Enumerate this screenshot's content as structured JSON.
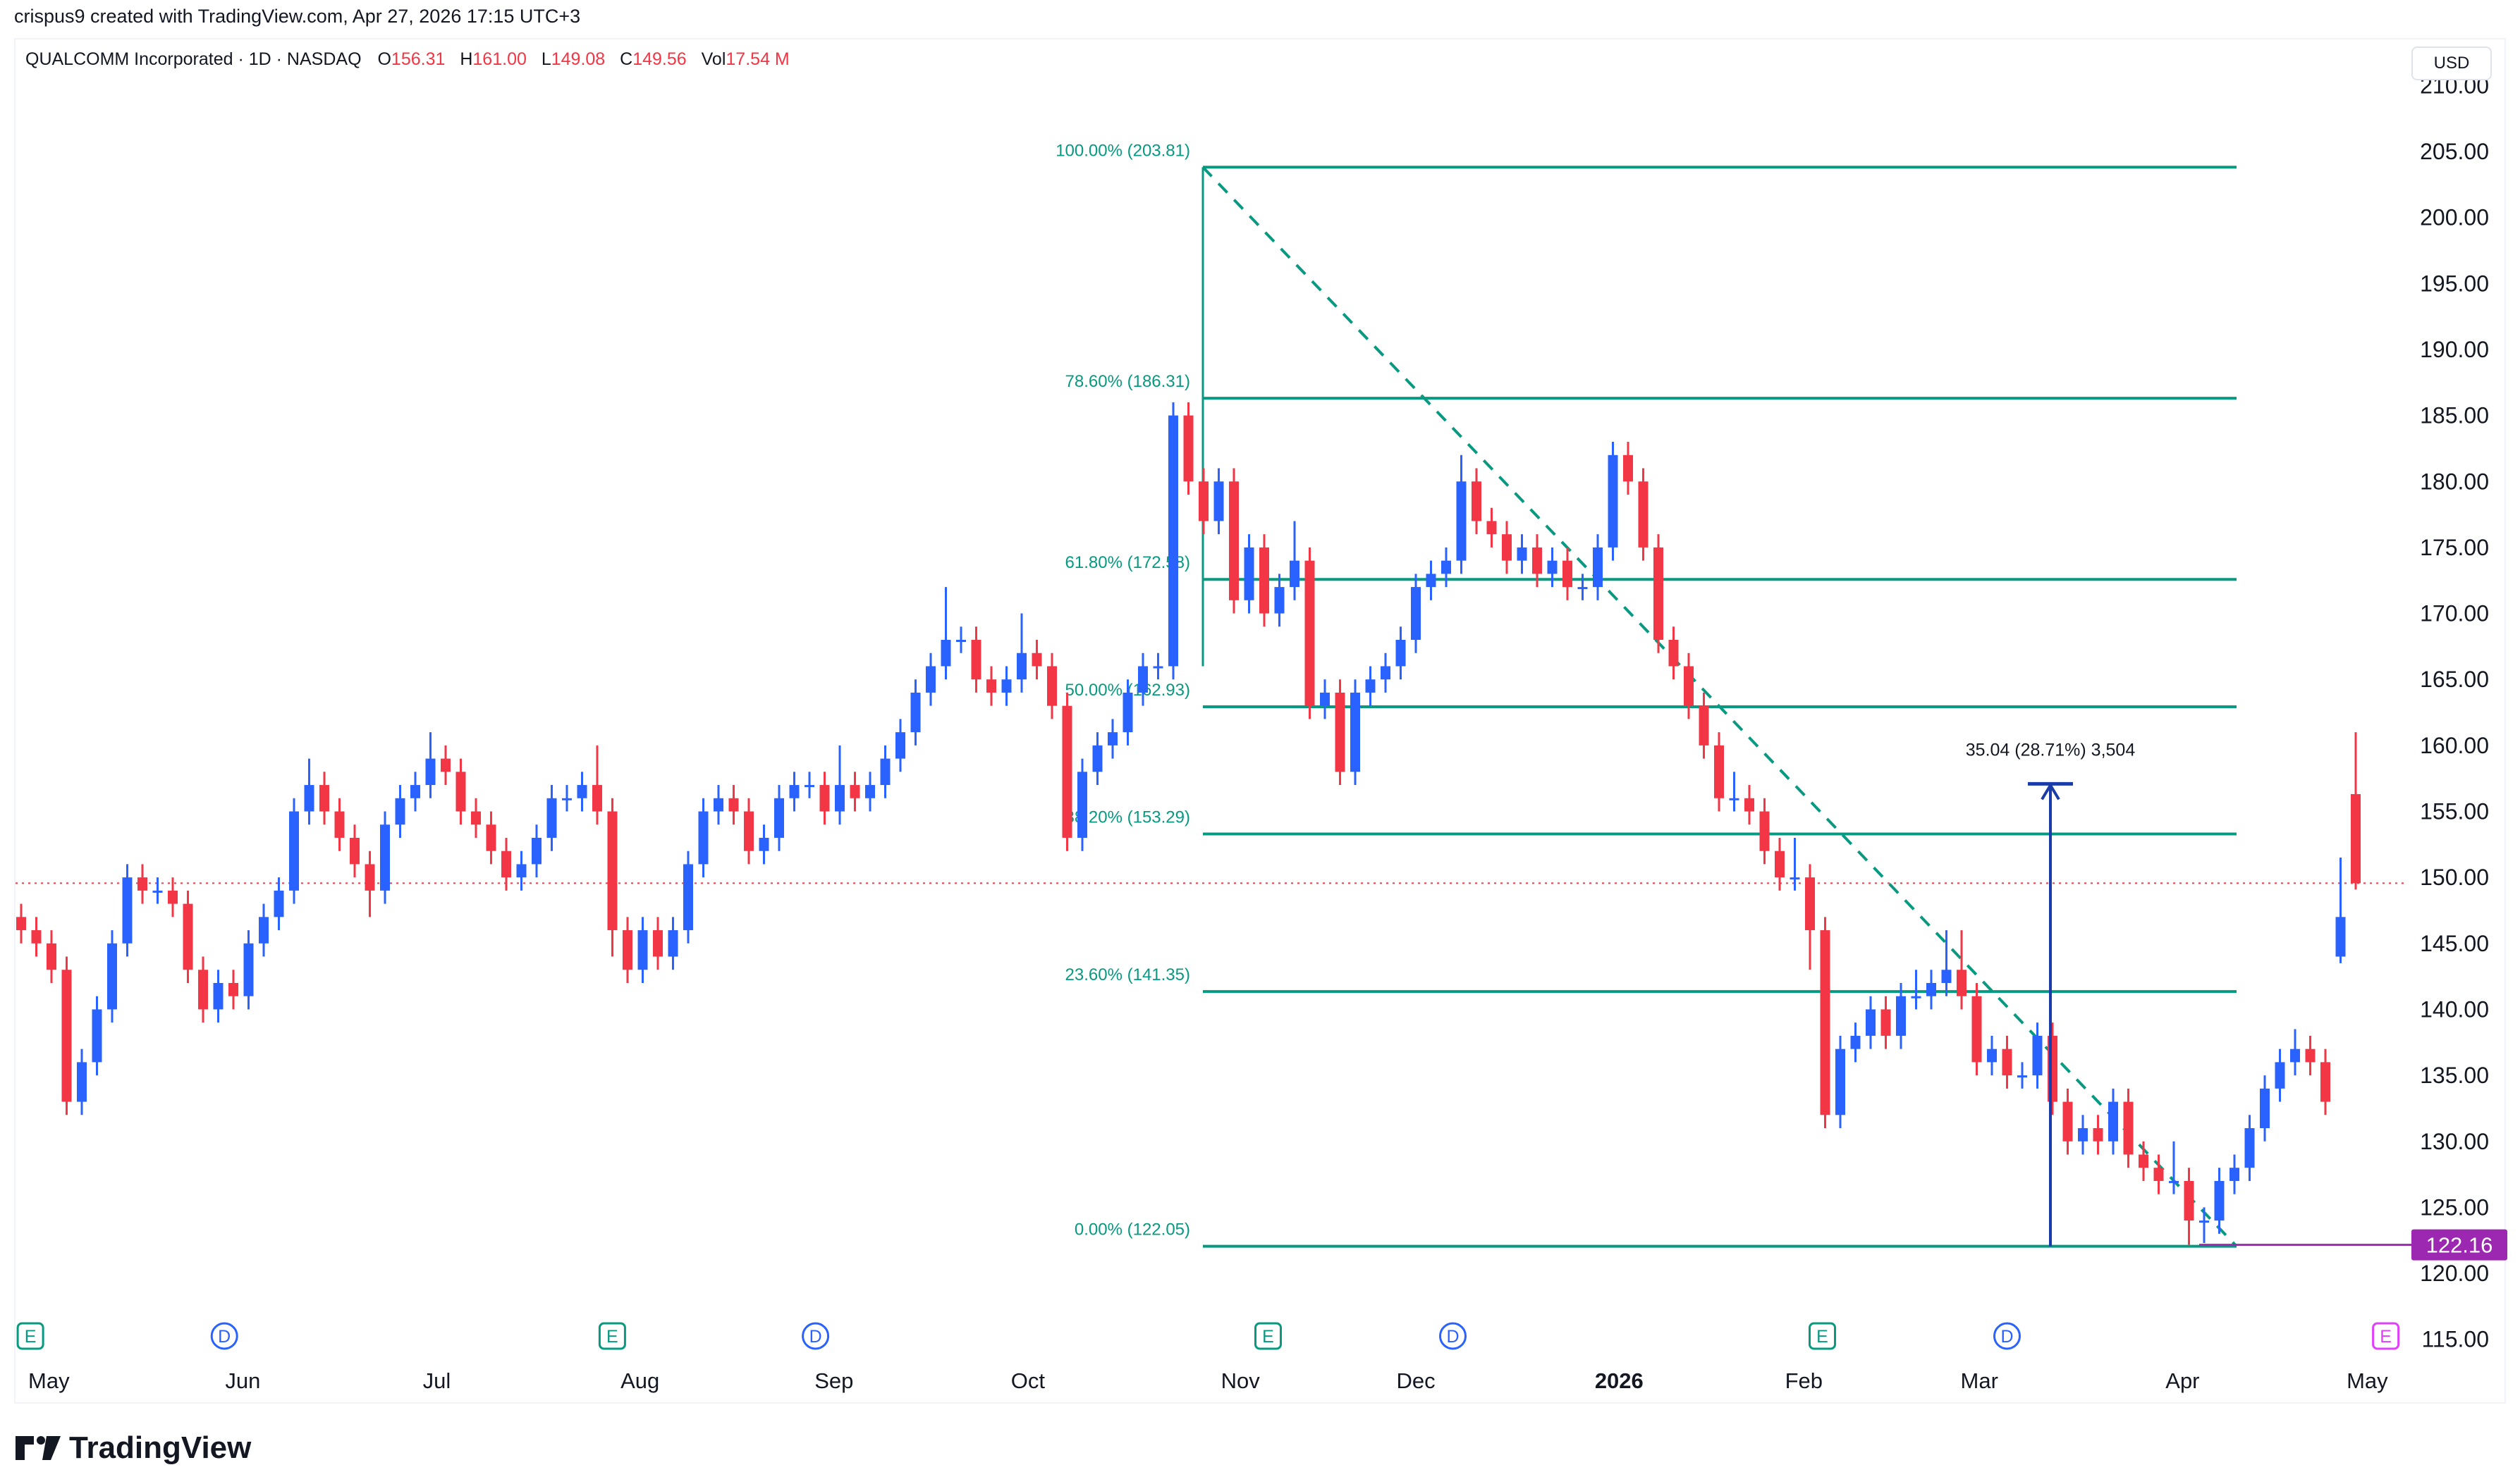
{
  "credit": "crispus9 created with TradingView.com, Apr 27, 2026 17:15 UTC+3",
  "symbol": {
    "title": "QUALCOMM Incorporated · 1D · NASDAQ",
    "open_label": "O",
    "open": "156.31",
    "high_label": "H",
    "high": "161.00",
    "low_label": "L",
    "low": "149.08",
    "close_label": "C",
    "close": "149.56",
    "vol_label": "Vol",
    "vol": "17.54 M"
  },
  "currency": "USD",
  "logo_text": "TradingView",
  "colors": {
    "up": "#2962ff",
    "down": "#f23645",
    "fib": "#089981",
    "measure": "#1a3ca8",
    "low_marker": "#9c27b0"
  },
  "chart_data": {
    "type": "candlestick",
    "ylim": [
      113,
      212
    ],
    "y_ticks": [
      "115.00",
      "120.00",
      "125.00",
      "130.00",
      "135.00",
      "140.00",
      "145.00",
      "150.00",
      "155.00",
      "160.00",
      "165.00",
      "170.00",
      "175.00",
      "180.00",
      "185.00",
      "190.00",
      "195.00",
      "200.00",
      "205.00",
      "210.00"
    ],
    "x_labels": [
      {
        "label": "May",
        "bar": 3
      },
      {
        "label": "Jun",
        "bar": 24
      },
      {
        "label": "Jul",
        "bar": 45
      },
      {
        "label": "Aug",
        "bar": 67
      },
      {
        "label": "Sep",
        "bar": 88
      },
      {
        "label": "Oct",
        "bar": 109
      },
      {
        "label": "Nov",
        "bar": 132
      },
      {
        "label": "Dec",
        "bar": 151
      },
      {
        "label": "2026",
        "bar": 173,
        "bold": true
      },
      {
        "label": "Feb",
        "bar": 193
      },
      {
        "label": "Mar",
        "bar": 212
      },
      {
        "label": "Apr",
        "bar": 234
      },
      {
        "label": "May",
        "bar": 254
      }
    ],
    "last_price": 149.56,
    "candles_ohlc": [
      [
        147,
        148,
        145,
        146
      ],
      [
        146,
        147,
        144,
        145
      ],
      [
        145,
        146,
        142,
        143
      ],
      [
        143,
        144,
        132,
        133
      ],
      [
        133,
        137,
        132,
        136
      ],
      [
        136,
        141,
        135,
        140
      ],
      [
        140,
        146,
        139,
        145
      ],
      [
        145,
        151,
        144,
        150
      ],
      [
        150,
        151,
        148,
        149
      ],
      [
        149,
        150,
        148,
        149
      ],
      [
        149,
        150,
        147,
        148
      ],
      [
        148,
        149,
        142,
        143
      ],
      [
        143,
        144,
        139,
        140
      ],
      [
        140,
        143,
        139,
        142
      ],
      [
        142,
        143,
        140,
        141
      ],
      [
        141,
        146,
        140,
        145
      ],
      [
        145,
        148,
        144,
        147
      ],
      [
        147,
        150,
        146,
        149
      ],
      [
        149,
        156,
        148,
        155
      ],
      [
        155,
        159,
        154,
        157
      ],
      [
        157,
        158,
        154,
        155
      ],
      [
        155,
        156,
        152,
        153
      ],
      [
        153,
        154,
        150,
        151
      ],
      [
        151,
        152,
        147,
        149
      ],
      [
        149,
        155,
        148,
        154
      ],
      [
        154,
        157,
        153,
        156
      ],
      [
        156,
        158,
        155,
        157
      ],
      [
        157,
        161,
        156,
        159
      ],
      [
        159,
        160,
        157,
        158
      ],
      [
        158,
        159,
        154,
        155
      ],
      [
        155,
        156,
        153,
        154
      ],
      [
        154,
        155,
        151,
        152
      ],
      [
        152,
        153,
        149,
        150
      ],
      [
        150,
        152,
        149,
        151
      ],
      [
        151,
        154,
        150,
        153
      ],
      [
        153,
        157,
        152,
        156
      ],
      [
        156,
        157,
        155,
        156
      ],
      [
        156,
        158,
        155,
        157
      ],
      [
        157,
        160,
        154,
        155
      ],
      [
        155,
        156,
        144,
        146
      ],
      [
        146,
        147,
        142,
        143
      ],
      [
        143,
        147,
        142,
        146
      ],
      [
        146,
        147,
        143,
        144
      ],
      [
        144,
        147,
        143,
        146
      ],
      [
        146,
        152,
        145,
        151
      ],
      [
        151,
        156,
        150,
        155
      ],
      [
        155,
        157,
        154,
        156
      ],
      [
        156,
        157,
        154,
        155
      ],
      [
        155,
        156,
        151,
        152
      ],
      [
        152,
        154,
        151,
        153
      ],
      [
        153,
        157,
        152,
        156
      ],
      [
        156,
        158,
        155,
        157
      ],
      [
        157,
        158,
        156,
        157
      ],
      [
        157,
        158,
        154,
        155
      ],
      [
        155,
        160,
        154,
        157
      ],
      [
        157,
        158,
        155,
        156
      ],
      [
        156,
        158,
        155,
        157
      ],
      [
        157,
        160,
        156,
        159
      ],
      [
        159,
        162,
        158,
        161
      ],
      [
        161,
        165,
        160,
        164
      ],
      [
        164,
        167,
        163,
        166
      ],
      [
        166,
        172,
        165,
        168
      ],
      [
        168,
        169,
        167,
        168
      ],
      [
        168,
        169,
        164,
        165
      ],
      [
        165,
        166,
        163,
        164
      ],
      [
        164,
        166,
        163,
        165
      ],
      [
        165,
        170,
        164,
        167
      ],
      [
        167,
        168,
        165,
        166
      ],
      [
        166,
        167,
        162,
        163
      ],
      [
        163,
        164,
        152,
        153
      ],
      [
        153,
        159,
        152,
        158
      ],
      [
        158,
        161,
        157,
        160
      ],
      [
        160,
        162,
        159,
        161
      ],
      [
        161,
        165,
        160,
        164
      ],
      [
        164,
        167,
        163,
        166
      ],
      [
        166,
        167,
        165,
        166
      ],
      [
        166,
        186,
        165,
        185
      ],
      [
        185,
        186,
        179,
        180
      ],
      [
        180,
        181,
        176,
        177
      ],
      [
        177,
        181,
        176,
        180
      ],
      [
        180,
        181,
        170,
        171
      ],
      [
        171,
        176,
        170,
        175
      ],
      [
        175,
        176,
        169,
        170
      ],
      [
        170,
        173,
        169,
        172
      ],
      [
        172,
        177,
        171,
        174
      ],
      [
        174,
        175,
        162,
        163
      ],
      [
        163,
        165,
        162,
        164
      ],
      [
        164,
        165,
        157,
        158
      ],
      [
        158,
        165,
        157,
        164
      ],
      [
        164,
        166,
        163,
        165
      ],
      [
        165,
        167,
        164,
        166
      ],
      [
        166,
        169,
        165,
        168
      ],
      [
        168,
        173,
        167,
        172
      ],
      [
        172,
        174,
        171,
        173
      ],
      [
        173,
        175,
        172,
        174
      ],
      [
        174,
        182,
        173,
        180
      ],
      [
        180,
        181,
        176,
        177
      ],
      [
        177,
        178,
        175,
        176
      ],
      [
        176,
        177,
        173,
        174
      ],
      [
        174,
        176,
        173,
        175
      ],
      [
        175,
        176,
        172,
        173
      ],
      [
        173,
        175,
        172,
        174
      ],
      [
        174,
        175,
        171,
        172
      ],
      [
        172,
        173,
        171,
        172
      ],
      [
        172,
        176,
        171,
        175
      ],
      [
        175,
        183,
        174,
        182
      ],
      [
        182,
        183,
        179,
        180
      ],
      [
        180,
        181,
        174,
        175
      ],
      [
        175,
        176,
        167,
        168
      ],
      [
        168,
        169,
        165,
        166
      ],
      [
        166,
        167,
        162,
        163
      ],
      [
        163,
        164,
        159,
        160
      ],
      [
        160,
        161,
        155,
        156
      ],
      [
        156,
        158,
        155,
        156
      ],
      [
        156,
        157,
        154,
        155
      ],
      [
        155,
        156,
        151,
        152
      ],
      [
        152,
        153,
        149,
        150
      ],
      [
        150,
        153,
        149,
        150
      ],
      [
        150,
        151,
        143,
        146
      ],
      [
        146,
        147,
        131,
        132
      ],
      [
        132,
        138,
        131,
        137
      ],
      [
        137,
        139,
        136,
        138
      ],
      [
        138,
        141,
        137,
        140
      ],
      [
        140,
        141,
        137,
        138
      ],
      [
        138,
        142,
        137,
        141
      ],
      [
        141,
        143,
        140,
        141
      ],
      [
        141,
        143,
        140,
        142
      ],
      [
        142,
        146,
        141,
        143
      ],
      [
        143,
        146,
        140,
        141
      ],
      [
        141,
        142,
        135,
        136
      ],
      [
        136,
        138,
        135,
        137
      ],
      [
        137,
        138,
        134,
        135
      ],
      [
        135,
        136,
        134,
        135
      ],
      [
        135,
        139,
        134,
        138
      ],
      [
        138,
        139,
        132,
        133
      ],
      [
        133,
        134,
        129,
        130
      ],
      [
        130,
        132,
        129,
        131
      ],
      [
        131,
        132,
        129,
        130
      ],
      [
        130,
        134,
        129,
        133
      ],
      [
        133,
        134,
        128,
        129
      ],
      [
        129,
        130,
        127,
        128
      ],
      [
        128,
        129,
        126,
        127
      ],
      [
        127,
        130,
        126,
        127
      ],
      [
        127,
        128,
        122.16,
        124
      ],
      [
        124,
        125,
        122.3,
        124
      ],
      [
        124,
        128,
        123,
        127
      ],
      [
        127,
        129,
        126,
        128
      ],
      [
        128,
        132,
        127,
        131
      ],
      [
        131,
        135,
        130,
        134
      ],
      [
        134,
        137,
        133,
        136
      ],
      [
        136,
        138.5,
        135,
        137
      ],
      [
        137,
        138,
        135,
        136
      ],
      [
        136,
        137,
        132,
        133
      ],
      [
        144,
        151.5,
        143.5,
        147
      ],
      [
        156.31,
        161,
        149.08,
        149.56
      ]
    ],
    "fibonacci": {
      "levels": [
        {
          "label": "100.00% (203.81)",
          "price": 203.81
        },
        {
          "label": "78.60% (186.31)",
          "price": 186.31
        },
        {
          "label": "61.80% (172.58)",
          "price": 172.58
        },
        {
          "label": "50.00% (162.93)",
          "price": 162.93
        },
        {
          "label": "38.20% (153.29)",
          "price": 153.29
        },
        {
          "label": "23.60% (141.35)",
          "price": 141.35
        },
        {
          "label": "0.00% (122.05)",
          "price": 122.05
        }
      ]
    },
    "measure": {
      "label": "35.04 (28.71%) 3,504",
      "from": 122.05,
      "to": 157.09
    },
    "low_marker": {
      "label": "122.16",
      "price": 122.16
    },
    "events": [
      {
        "type": "E",
        "bar": 1
      },
      {
        "type": "D",
        "bar": 22
      },
      {
        "type": "E",
        "bar": 64
      },
      {
        "type": "D",
        "bar": 86
      },
      {
        "type": "E",
        "bar": 135
      },
      {
        "type": "D",
        "bar": 155
      },
      {
        "type": "E",
        "bar": 195
      },
      {
        "type": "D",
        "bar": 215
      },
      {
        "type": "E",
        "bar": 256,
        "upcoming": true
      }
    ]
  }
}
